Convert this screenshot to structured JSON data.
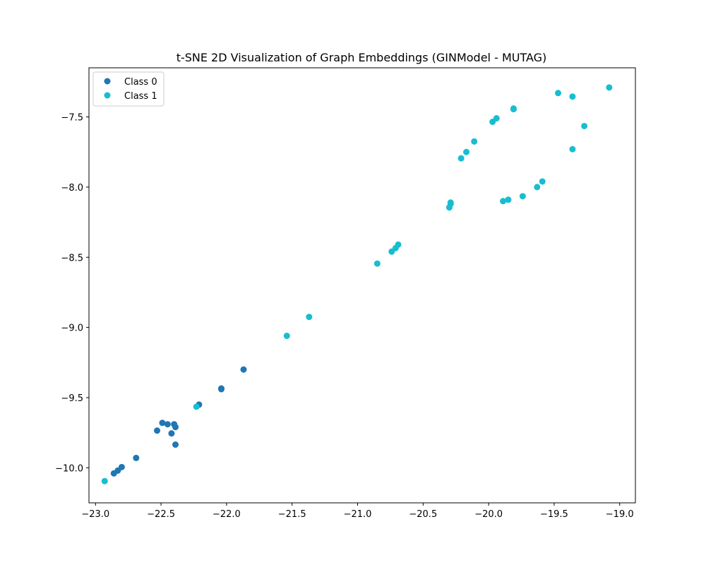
{
  "chart_data": {
    "type": "scatter",
    "title": "t-SNE 2D Visualization of Graph Embeddings (GINModel - MUTAG)",
    "xlabel": "",
    "ylabel": "",
    "xlim": [
      -23.05,
      -18.88
    ],
    "ylim": [
      -10.25,
      -7.15
    ],
    "xticks": [
      -23.0,
      -22.5,
      -22.0,
      -21.5,
      -21.0,
      -20.5,
      -20.0,
      -19.5,
      -19.0
    ],
    "xtick_labels": [
      "−23.0",
      "−22.5",
      "−22.0",
      "−21.5",
      "−21.0",
      "−20.5",
      "−20.0",
      "−19.5",
      "−19.0"
    ],
    "yticks": [
      -10.0,
      -9.5,
      -9.0,
      -8.5,
      -8.0,
      -7.5
    ],
    "ytick_labels": [
      "−10.0",
      "−9.5",
      "−9.0",
      "−8.5",
      "−8.0",
      "−7.5"
    ],
    "grid": false,
    "legend_position": "top-left",
    "series": [
      {
        "name": "Class 0",
        "color": "#1f77b4",
        "points": [
          [
            -22.86,
            -10.04
          ],
          [
            -22.83,
            -10.02
          ],
          [
            -22.8,
            -9.995
          ],
          [
            -22.69,
            -9.93
          ],
          [
            -22.53,
            -9.735
          ],
          [
            -22.49,
            -9.68
          ],
          [
            -22.45,
            -9.69
          ],
          [
            -22.42,
            -9.755
          ],
          [
            -22.4,
            -9.69
          ],
          [
            -22.39,
            -9.71
          ],
          [
            -22.39,
            -9.835
          ],
          [
            -22.21,
            -9.55
          ],
          [
            -22.04,
            -9.435
          ],
          [
            -22.04,
            -9.44
          ],
          [
            -21.87,
            -9.3
          ]
        ]
      },
      {
        "name": "Class 1",
        "color": "#17becf",
        "points": [
          [
            -22.93,
            -10.095
          ],
          [
            -22.23,
            -9.565
          ],
          [
            -21.54,
            -9.06
          ],
          [
            -21.37,
            -8.925
          ],
          [
            -20.85,
            -8.545
          ],
          [
            -20.74,
            -8.46
          ],
          [
            -20.71,
            -8.435
          ],
          [
            -20.69,
            -8.41
          ],
          [
            -20.3,
            -8.145
          ],
          [
            -20.29,
            -8.12
          ],
          [
            -20.29,
            -8.11
          ],
          [
            -20.21,
            -7.795
          ],
          [
            -20.17,
            -7.75
          ],
          [
            -20.11,
            -7.675
          ],
          [
            -19.97,
            -7.535
          ],
          [
            -19.94,
            -7.51
          ],
          [
            -19.89,
            -8.1
          ],
          [
            -19.85,
            -8.09
          ],
          [
            -19.81,
            -7.445
          ],
          [
            -19.81,
            -7.44
          ],
          [
            -19.74,
            -8.065
          ],
          [
            -19.63,
            -8.0
          ],
          [
            -19.59,
            -7.96
          ],
          [
            -19.47,
            -7.33
          ],
          [
            -19.36,
            -7.355
          ],
          [
            -19.36,
            -7.73
          ],
          [
            -19.27,
            -7.565
          ],
          [
            -19.08,
            -7.29
          ]
        ]
      }
    ]
  }
}
